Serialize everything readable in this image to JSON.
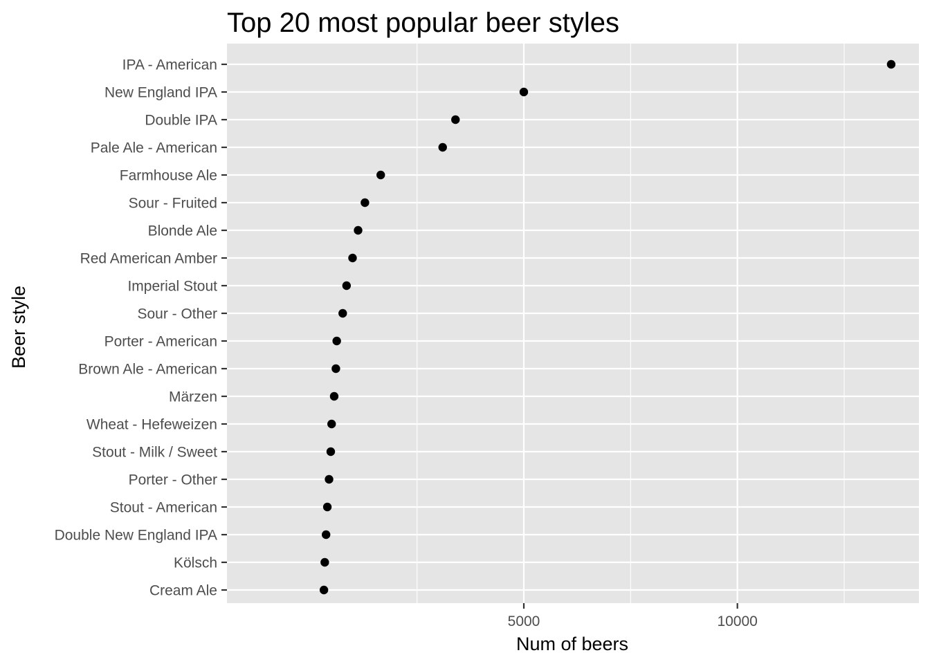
{
  "chart_data": {
    "type": "scatter",
    "title": "Top 20 most popular beer styles",
    "xlabel": "Num of beers",
    "ylabel": "Beer style",
    "xlim": [
      -1950,
      14250
    ],
    "x_ticks": [
      5000,
      10000
    ],
    "x_tick_labels": [
      "5000",
      "10000"
    ],
    "grid": true,
    "legend": "none",
    "categories": [
      "IPA - American",
      "New England IPA",
      "Double IPA",
      "Pale Ale - American",
      "Farmhouse Ale",
      "Sour - Fruited",
      "Blonde Ale",
      "Red American Amber",
      "Imperial Stout",
      "Sour - Other",
      "Porter - American",
      "Brown Ale - American",
      "Märzen",
      "Wheat  - Hefeweizen",
      "Stout - Milk / Sweet",
      "Porter - Other",
      "Stout - American",
      "Double New England IPA",
      "Kölsch",
      "Cream Ale"
    ],
    "values": [
      13600,
      5000,
      3400,
      3100,
      1650,
      1280,
      1120,
      990,
      850,
      760,
      620,
      600,
      560,
      500,
      480,
      440,
      400,
      370,
      340,
      320
    ],
    "colors": {
      "panel": "#e5e5e5",
      "grid_major": "#ffffff",
      "point": "#000000",
      "tick_text": "#4d4d4d",
      "tick_mark": "#333333"
    }
  }
}
